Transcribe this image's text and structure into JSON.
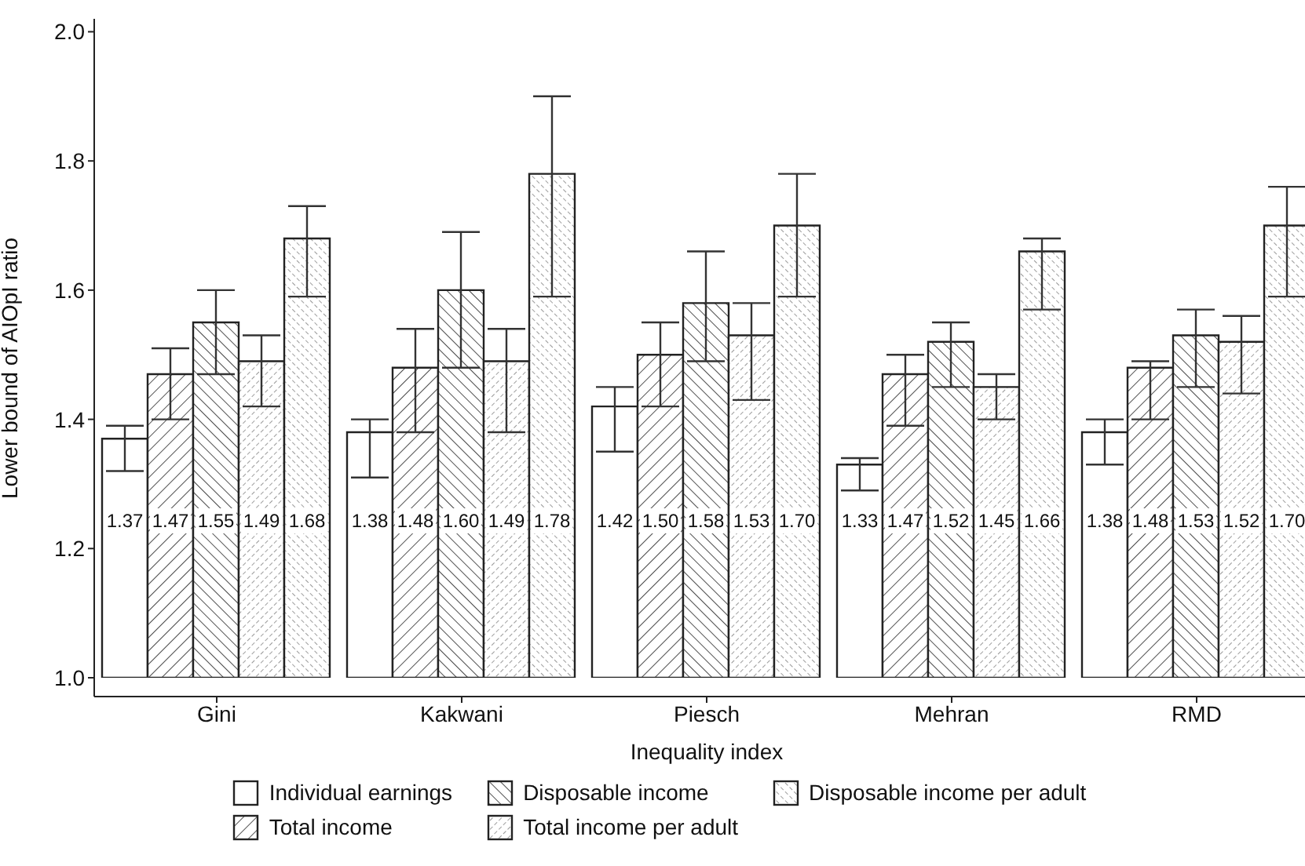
{
  "chart_data": {
    "type": "bar",
    "xlabel": "Inequality index",
    "ylabel": "Lower bound of AIOpI ratio",
    "categories": [
      "Gini",
      "Kakwani",
      "Piesch",
      "Mehran",
      "RMD"
    ],
    "series": [
      {
        "name": "Individual earnings",
        "color": "#ffffff",
        "values": [
          1.37,
          1.38,
          1.42,
          1.33,
          1.38
        ],
        "value_labels": [
          "1.37",
          "1.38",
          "1.42",
          "1.33",
          "1.38"
        ],
        "errors": [
          [
            1.32,
            1.39
          ],
          [
            1.31,
            1.4
          ],
          [
            1.35,
            1.45
          ],
          [
            1.29,
            1.34
          ],
          [
            1.33,
            1.4
          ]
        ]
      },
      {
        "name": "Total income",
        "color": "#222222",
        "values": [
          1.47,
          1.48,
          1.5,
          1.47,
          1.48
        ],
        "value_labels": [
          "1.47",
          "1.48",
          "1.50",
          "1.47",
          "1.48"
        ],
        "errors": [
          [
            1.4,
            1.51
          ],
          [
            1.38,
            1.54
          ],
          [
            1.42,
            1.55
          ],
          [
            1.39,
            1.5
          ],
          [
            1.4,
            1.49
          ]
        ]
      },
      {
        "name": "Disposable income",
        "color": "#222222",
        "values": [
          1.55,
          1.6,
          1.58,
          1.52,
          1.53
        ],
        "value_labels": [
          "1.55",
          "1.60",
          "1.58",
          "1.52",
          "1.53"
        ],
        "errors": [
          [
            1.47,
            1.6
          ],
          [
            1.48,
            1.69
          ],
          [
            1.49,
            1.66
          ],
          [
            1.45,
            1.55
          ],
          [
            1.45,
            1.57
          ]
        ]
      },
      {
        "name": "Total income per adult",
        "color": "#222222",
        "values": [
          1.49,
          1.49,
          1.53,
          1.45,
          1.52
        ],
        "value_labels": [
          "1.49",
          "1.49",
          "1.53",
          "1.45",
          "1.52"
        ],
        "errors": [
          [
            1.42,
            1.53
          ],
          [
            1.38,
            1.54
          ],
          [
            1.43,
            1.58
          ],
          [
            1.4,
            1.47
          ],
          [
            1.44,
            1.56
          ]
        ]
      },
      {
        "name": "Disposable income per adult",
        "color": "#222222",
        "values": [
          1.68,
          1.78,
          1.7,
          1.66,
          1.7
        ],
        "value_labels": [
          "1.68",
          "1.78",
          "1.70",
          "1.66",
          "1.70"
        ],
        "errors": [
          [
            1.59,
            1.73
          ],
          [
            1.59,
            1.9
          ],
          [
            1.59,
            1.78
          ],
          [
            1.57,
            1.68
          ],
          [
            1.59,
            1.76
          ]
        ]
      }
    ],
    "ylim": [
      1,
      2.02
    ],
    "yticks": [
      {
        "value": 1,
        "label": "1.0"
      },
      {
        "value": 1.2,
        "label": "1.2"
      },
      {
        "value": 1.4,
        "label": "1.4"
      },
      {
        "value": 1.6,
        "label": "1.6"
      },
      {
        "value": 1.8,
        "label": "1.8"
      },
      {
        "value": 2,
        "label": "2.0"
      }
    ],
    "legend": "bottom"
  }
}
